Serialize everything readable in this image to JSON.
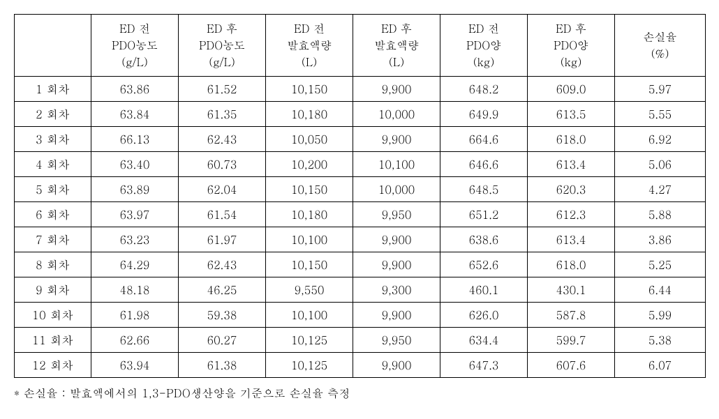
{
  "table": {
    "columns": [
      {
        "lines": [
          ""
        ]
      },
      {
        "lines": [
          "ED 전",
          "PDO농도",
          "(g/L)"
        ]
      },
      {
        "lines": [
          "ED 후",
          "PDO농도",
          "(g/L)"
        ]
      },
      {
        "lines": [
          "ED 전",
          "발효액량",
          "(L)"
        ]
      },
      {
        "lines": [
          "ED 후",
          "발효액량",
          "(L)"
        ]
      },
      {
        "lines": [
          "ED 전",
          "PDO양",
          "(kg)"
        ]
      },
      {
        "lines": [
          "ED 후",
          "PDO양",
          "(kg)"
        ]
      },
      {
        "lines": [
          "손실율",
          "(%)"
        ]
      }
    ],
    "rows": [
      [
        "1 회차",
        "63.86",
        "61.52",
        "10,150",
        "9,900",
        "648.2",
        "609.0",
        "5.97"
      ],
      [
        "2 회차",
        "63.84",
        "61.35",
        "10,180",
        "10,000",
        "649.9",
        "613.5",
        "5.55"
      ],
      [
        "3 회차",
        "66.13",
        "62.43",
        "10,050",
        "9,900",
        "664.6",
        "618.0",
        "6.92"
      ],
      [
        "4 회차",
        "63.40",
        "60.73",
        "10,200",
        "10,100",
        "646.6",
        "613.4",
        "5.06"
      ],
      [
        "5 회차",
        "63.89",
        "62.04",
        "10,150",
        "10,000",
        "648.5",
        "620.3",
        "4.27"
      ],
      [
        "6 회차",
        "63.97",
        "61.54",
        "10,180",
        "9,950",
        "651.2",
        "612.3",
        "5.88"
      ],
      [
        "7 회차",
        "63.23",
        "61.97",
        "10,100",
        "9,900",
        "638.6",
        "613.4",
        "3.86"
      ],
      [
        "8 회차",
        "64.29",
        "62.43",
        "10,150",
        "9,900",
        "652.6",
        "618.0",
        "5.25"
      ],
      [
        "9 회차",
        "48.18",
        "46.25",
        "9,550",
        "9,300",
        "460.1",
        "430.1",
        "6.44"
      ],
      [
        "10 회차",
        "61.98",
        "59.38",
        "10,100",
        "9,900",
        "626.0",
        "587.8",
        "5.99"
      ],
      [
        "11 회차",
        "62.66",
        "60.27",
        "10,125",
        "9,950",
        "634.4",
        "599.7",
        "5.38"
      ],
      [
        "12 회차",
        "63.94",
        "61.38",
        "10,125",
        "9,900",
        "647.3",
        "607.6",
        "6.07"
      ]
    ],
    "colWidths": [
      "110px",
      "125px",
      "125px",
      "125px",
      "125px",
      "125px",
      "125px",
      "130px"
    ]
  },
  "footnote": "* 손실율 : 발효액에서의 1,3-PDO생산양을 기준으로 손실율 측정",
  "style": {
    "background_color": "#ffffff",
    "border_color": "#000000",
    "text_color": "#000000",
    "font_family": "Batang, serif",
    "cell_fontsize": 16,
    "header_lineheight": 1.5
  }
}
